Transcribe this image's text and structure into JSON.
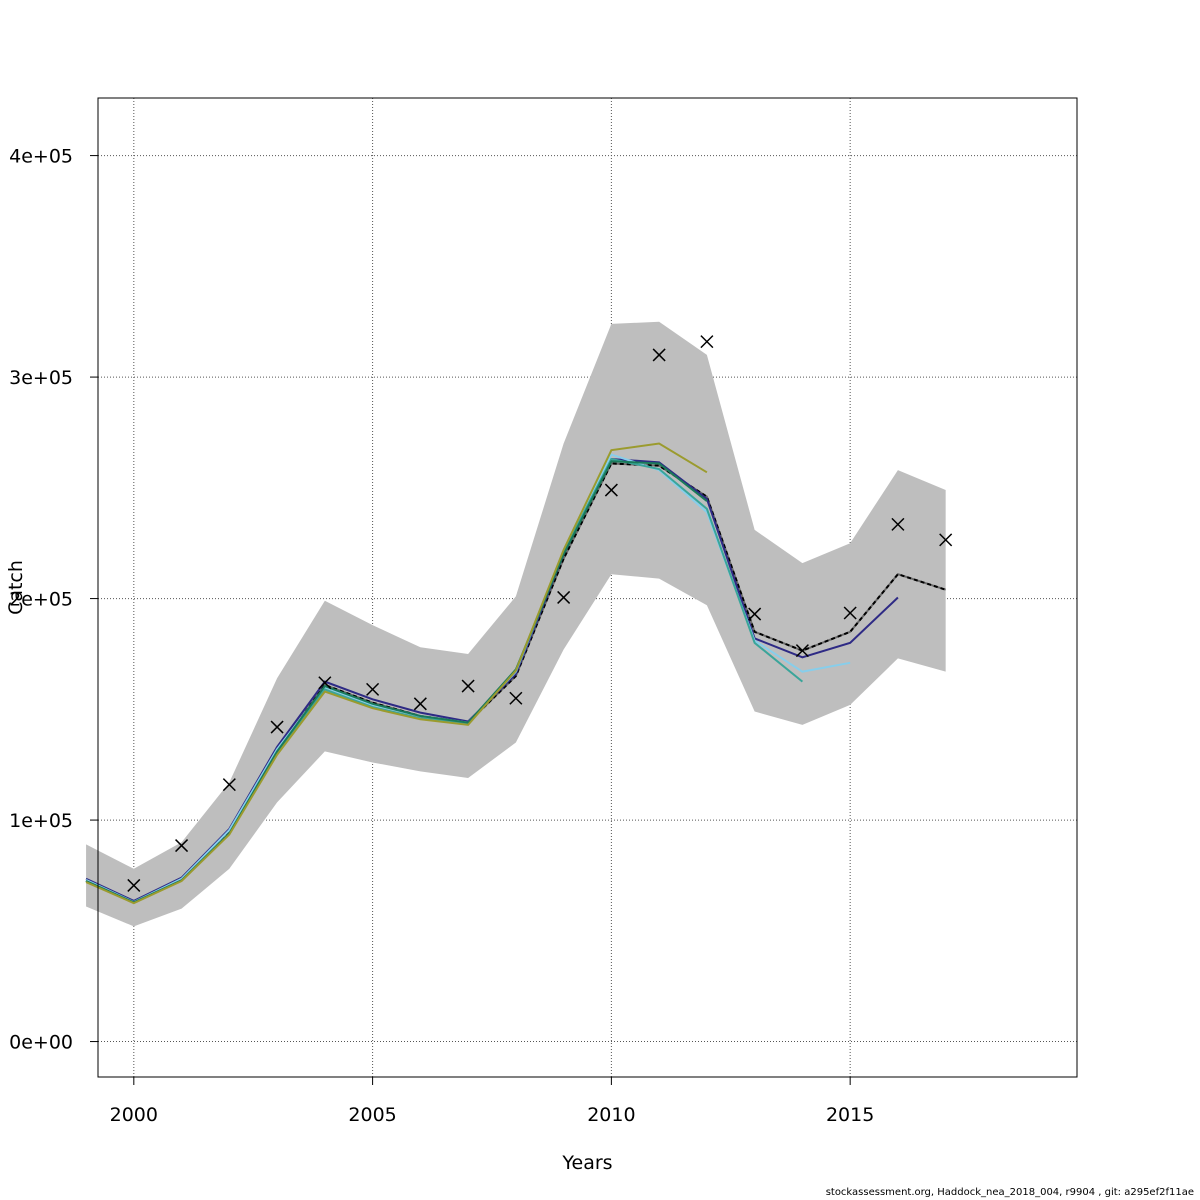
{
  "chart_data": {
    "type": "line",
    "title": "",
    "xlabel": "Years",
    "ylabel": "Catch",
    "xlim": [
      1999.25,
      2019.75
    ],
    "ylim": [
      -16000,
      426000
    ],
    "x_ticks": [
      2000,
      2005,
      2010,
      2015
    ],
    "x_tick_labels": [
      "2000",
      "2005",
      "2010",
      "2015"
    ],
    "y_ticks": [
      0,
      100000,
      200000,
      300000,
      400000
    ],
    "y_tick_labels": [
      "0e+00",
      "1e+05",
      "2e+05",
      "3e+05",
      "4e+05"
    ],
    "grid": true,
    "confidence_band": {
      "x": [
        1999,
        2000,
        2001,
        2002,
        2003,
        2004,
        2005,
        2006,
        2007,
        2008,
        2009,
        2010,
        2011,
        2012,
        2013,
        2014,
        2015,
        2016,
        2017
      ],
      "upper": [
        89000,
        78000,
        90000,
        117000,
        164000,
        199000,
        188000,
        178000,
        175000,
        201000,
        270000,
        324000,
        325000,
        310000,
        231000,
        216000,
        225000,
        258000,
        249000
      ],
      "lower": [
        61000,
        52000,
        60000,
        78000,
        108000,
        131000,
        126000,
        122000,
        119000,
        135000,
        177000,
        211000,
        209000,
        197000,
        149000,
        143000,
        152000,
        173000,
        167000
      ],
      "color": "#bebebe"
    },
    "observed": {
      "x": [
        2000,
        2001,
        2002,
        2003,
        2004,
        2005,
        2006,
        2007,
        2008,
        2009,
        2010,
        2011,
        2012,
        2013,
        2014,
        2015,
        2016,
        2017
      ],
      "values": [
        70500,
        88500,
        116000,
        142000,
        162000,
        159000,
        152500,
        160500,
        155000,
        200500,
        249000,
        310000,
        316000,
        193000,
        176500,
        193500,
        233500,
        226500
      ],
      "marker": "x"
    },
    "series": [
      {
        "x": [
          1999,
          2000,
          2001,
          2002,
          2003,
          2004,
          2005,
          2006,
          2007,
          2008,
          2009,
          2010,
          2011,
          2012,
          2013,
          2014,
          2015,
          2016,
          2017
        ],
        "values": [
          72500,
          63000,
          73000,
          94500,
          131000,
          161000,
          153000,
          147000,
          144000,
          165000,
          218000,
          261000,
          260000,
          246000,
          185000,
          176500,
          185000,
          211000,
          204000
        ],
        "color": "#000000",
        "dashed": true,
        "base_color": "#6b6b6b"
      },
      {
        "x": [
          1999,
          2000,
          2001,
          2002,
          2003,
          2004,
          2005,
          2006,
          2007,
          2008,
          2009,
          2010,
          2011,
          2012,
          2013,
          2014,
          2015,
          2016
        ],
        "values": [
          73500,
          63500,
          74000,
          96000,
          133000,
          162500,
          154500,
          148500,
          144500,
          166000,
          220000,
          263000,
          261500,
          245000,
          182000,
          173500,
          180000,
          200500
        ],
        "color": "#2e2a85"
      },
      {
        "x": [
          1999,
          2000,
          2001,
          2002,
          2003,
          2004,
          2005,
          2006,
          2007,
          2008,
          2009,
          2010,
          2011,
          2012,
          2013,
          2014,
          2015
        ],
        "values": [
          73000,
          63000,
          73500,
          95500,
          132000,
          160000,
          152000,
          147000,
          144000,
          167000,
          221000,
          265000,
          258000,
          239000,
          181000,
          167000,
          171000
        ],
        "color": "#87ceeb"
      },
      {
        "x": [
          1999,
          2000,
          2001,
          2002,
          2003,
          2004,
          2005,
          2006,
          2007,
          2008,
          2009,
          2010,
          2011,
          2012,
          2013,
          2014
        ],
        "values": [
          72500,
          62800,
          72800,
          94000,
          130500,
          159000,
          151000,
          146000,
          143500,
          167500,
          221000,
          263000,
          258500,
          240500,
          180000,
          162500
        ],
        "color": "#3aa59a"
      },
      {
        "x": [
          1999,
          2000,
          2001,
          2002,
          2003,
          2004,
          2005,
          2006,
          2007,
          2008,
          2009,
          2010,
          2011,
          2012
        ],
        "values": [
          72500,
          62800,
          72800,
          94000,
          131000,
          160500,
          152500,
          147000,
          144000,
          168000,
          220000,
          262000,
          261000,
          244000
        ],
        "color": "#1a7a5a"
      },
      {
        "x": [
          1999,
          2000,
          2001,
          2002,
          2003,
          2004,
          2005,
          2006,
          2007,
          2008,
          2009,
          2010,
          2011,
          2012
        ],
        "values": [
          72000,
          62500,
          72500,
          93500,
          129500,
          158000,
          150500,
          145500,
          143000,
          167500,
          222000,
          267000,
          270000,
          257000
        ],
        "color": "#9b9b2e"
      }
    ]
  },
  "footer": {
    "text": "stockassessment.org, Haddock_nea_2018_004, r9904 , git: a295ef2f11ae"
  }
}
